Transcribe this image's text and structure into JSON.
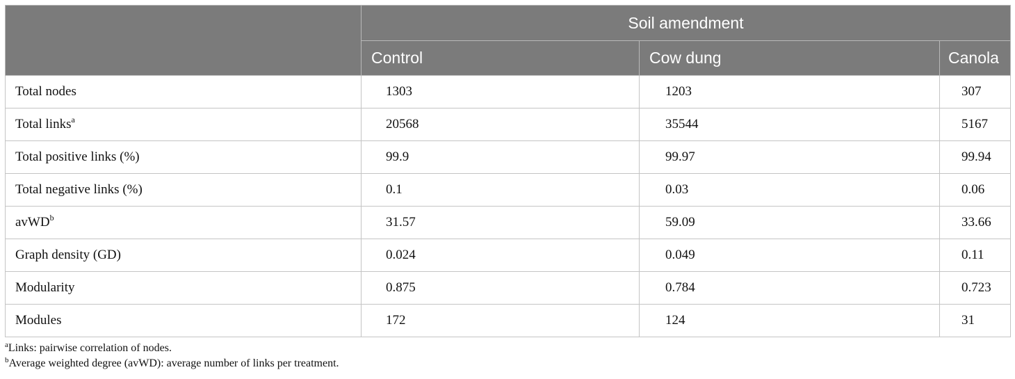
{
  "header": {
    "group_label": "Soil amendment",
    "columns": [
      "Control",
      "Cow dung",
      "Canola"
    ]
  },
  "rows": [
    {
      "label": "Total nodes",
      "sup": "",
      "values": [
        "1303",
        "1203",
        "307"
      ]
    },
    {
      "label": "Total links",
      "sup": "a",
      "values": [
        "20568",
        "35544",
        "5167"
      ]
    },
    {
      "label": "Total positive links (%)",
      "sup": "",
      "values": [
        "99.9",
        "99.97",
        "99.94"
      ]
    },
    {
      "label": "Total negative links (%)",
      "sup": "",
      "values": [
        "0.1",
        "0.03",
        "0.06"
      ]
    },
    {
      "label": "avWD",
      "sup": "b",
      "values": [
        "31.57",
        "59.09",
        "33.66"
      ]
    },
    {
      "label": "Graph density (GD)",
      "sup": "",
      "values": [
        "0.024",
        "0.049",
        "0.11"
      ]
    },
    {
      "label": "Modularity",
      "sup": "",
      "values": [
        "0.875",
        "0.784",
        "0.723"
      ]
    },
    {
      "label": "Modules",
      "sup": "",
      "values": [
        "172",
        "124",
        "31"
      ]
    }
  ],
  "footnotes": [
    {
      "mark": "a",
      "text": "Links: pairwise correlation of nodes."
    },
    {
      "mark": "b",
      "text": "Average weighted degree (avWD): average number of links per treatment."
    }
  ]
}
